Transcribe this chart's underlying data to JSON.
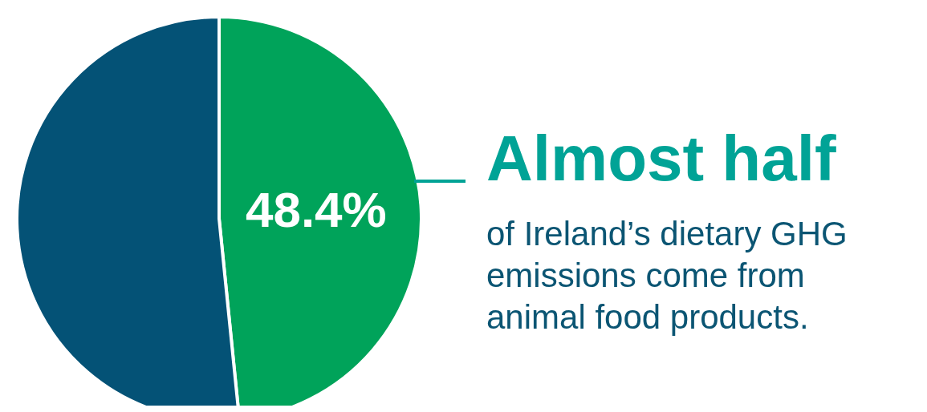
{
  "chart_data": {
    "type": "pie",
    "title": "Almost half",
    "subtitle": "of Ireland’s dietary GHG emissions come from animal food products.",
    "categories": [
      null,
      null
    ],
    "values": [
      48.4,
      51.6
    ],
    "colors": [
      "#00a35a",
      "#045276"
    ],
    "value_labels": [
      "48.4%",
      null
    ]
  }
}
